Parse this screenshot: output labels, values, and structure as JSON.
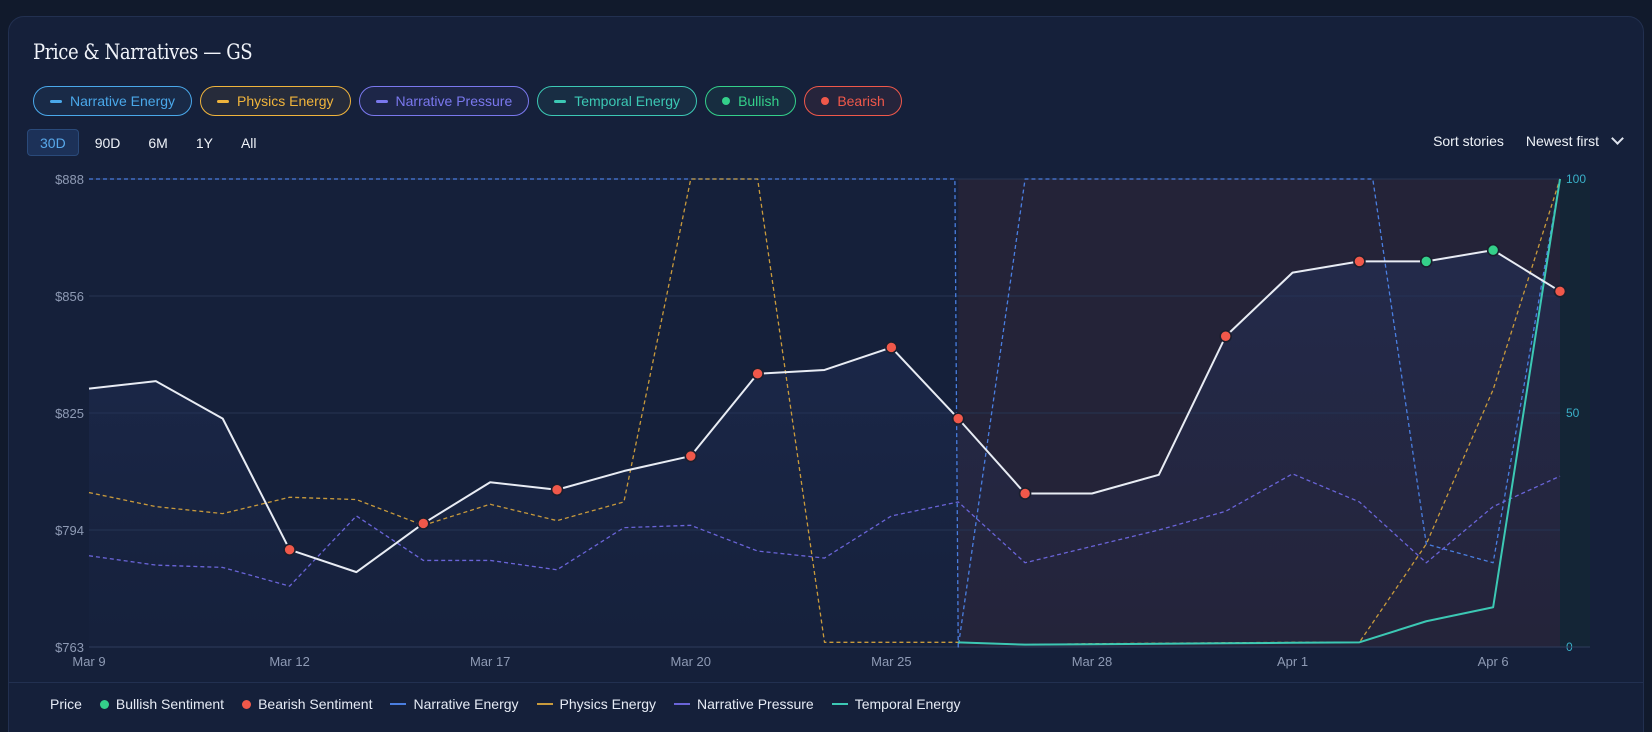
{
  "title": "Price & Narratives — GS",
  "pills": [
    {
      "label": "Narrative Energy",
      "color": "#4aa8ea",
      "kind": "dash"
    },
    {
      "label": "Physics Energy",
      "color": "#f0b43c",
      "kind": "dash"
    },
    {
      "label": "Narrative Pressure",
      "color": "#7a78ee",
      "kind": "dash"
    },
    {
      "label": "Temporal Energy",
      "color": "#3cc8b4",
      "kind": "dash"
    },
    {
      "label": "Bullish",
      "color": "#34d08a",
      "kind": "dot"
    },
    {
      "label": "Bearish",
      "color": "#f0584a",
      "kind": "dot"
    }
  ],
  "ranges": [
    "30D",
    "90D",
    "6M",
    "1Y",
    "All"
  ],
  "active_range": "30D",
  "sort": {
    "label": "Sort stories",
    "value": "Newest first"
  },
  "bottom_legend": [
    {
      "label": "Price",
      "kind": "none",
      "color": "#e6ebf5"
    },
    {
      "label": "Bullish Sentiment",
      "kind": "dot",
      "color": "#34d08a"
    },
    {
      "label": "Bearish Sentiment",
      "kind": "dot",
      "color": "#f0584a"
    },
    {
      "label": "Narrative Energy",
      "kind": "line",
      "color": "#4a7ee0"
    },
    {
      "label": "Physics Energy",
      "kind": "line",
      "color": "#c89a3c"
    },
    {
      "label": "Narrative Pressure",
      "kind": "line",
      "color": "#6a64d8"
    },
    {
      "label": "Temporal Energy",
      "kind": "line",
      "color": "#3cc8b4"
    }
  ],
  "chart_data": {
    "type": "line",
    "x_start": "Mar 9",
    "x_ticks": [
      {
        "label": "Mar 9",
        "index": 0
      },
      {
        "label": "Mar 12",
        "index": 3
      },
      {
        "label": "Mar 17",
        "index": 6
      },
      {
        "label": "Mar 20",
        "index": 9
      },
      {
        "label": "Mar 25",
        "index": 12
      },
      {
        "label": "Mar 28",
        "index": 15
      },
      {
        "label": "Apr 1",
        "index": 18
      },
      {
        "label": "Apr 6",
        "index": 21
      }
    ],
    "y_left": {
      "ticks": [
        "$888",
        "$856",
        "$825",
        "$794",
        "$763"
      ],
      "range": [
        763,
        888
      ]
    },
    "y_right": {
      "ticks": [
        "100",
        "50",
        "0"
      ],
      "range": [
        0,
        100
      ]
    },
    "highlight_region": {
      "from_index": 13,
      "to_index": 22
    },
    "price": [
      832,
      834,
      824,
      789,
      783,
      796,
      807,
      805,
      810,
      814,
      836,
      837,
      843,
      824,
      804,
      804,
      809,
      846,
      863,
      866,
      866,
      869,
      858
    ],
    "sentiment_markers": [
      {
        "index": 3,
        "sentiment": "bearish"
      },
      {
        "index": 5,
        "sentiment": "bearish"
      },
      {
        "index": 7,
        "sentiment": "bearish"
      },
      {
        "index": 9,
        "sentiment": "bearish"
      },
      {
        "index": 10,
        "sentiment": "bearish"
      },
      {
        "index": 12,
        "sentiment": "bearish"
      },
      {
        "index": 13,
        "sentiment": "bearish"
      },
      {
        "index": 14,
        "sentiment": "bearish"
      },
      {
        "index": 17,
        "sentiment": "bearish"
      },
      {
        "index": 19,
        "sentiment": "bearish"
      },
      {
        "index": 20,
        "sentiment": "bullish"
      },
      {
        "index": 21,
        "sentiment": "bullish"
      },
      {
        "index": 22,
        "sentiment": "bearish"
      }
    ],
    "series": [
      {
        "name": "Narrative Energy",
        "color": "#4a7ee0",
        "dashed": true,
        "axis": "right",
        "points": [
          [
            0,
            100
          ],
          [
            12.95,
            100
          ],
          [
            13,
            0
          ],
          [
            14,
            100
          ],
          [
            19,
            100
          ],
          [
            19.2,
            100
          ],
          [
            20,
            22
          ],
          [
            21,
            18
          ],
          [
            22,
            100
          ]
        ]
      },
      {
        "name": "Physics Energy",
        "color": "#c89a3c",
        "dashed": true,
        "axis": "right",
        "points": [
          [
            0,
            33
          ],
          [
            1,
            30
          ],
          [
            2,
            28.5
          ],
          [
            3,
            32
          ],
          [
            4,
            31.5
          ],
          [
            5,
            26
          ],
          [
            6,
            30.5
          ],
          [
            7,
            27
          ],
          [
            8,
            31
          ],
          [
            9,
            100
          ],
          [
            10,
            100
          ],
          [
            11,
            1
          ],
          [
            12,
            1
          ],
          [
            13,
            1
          ],
          [
            14,
            0.5
          ],
          [
            15,
            0.7
          ],
          [
            16,
            0.8
          ],
          [
            17,
            0.9
          ],
          [
            18,
            1
          ],
          [
            19,
            1
          ],
          [
            20,
            22
          ],
          [
            21,
            55
          ],
          [
            22,
            100
          ]
        ]
      },
      {
        "name": "Narrative Pressure",
        "color": "#6a64d8",
        "dashed": true,
        "axis": "right",
        "points": [
          [
            0,
            19.5
          ],
          [
            1,
            17.5
          ],
          [
            2,
            17
          ],
          [
            3,
            13
          ],
          [
            4,
            28
          ],
          [
            5,
            18.5
          ],
          [
            6,
            18.5
          ],
          [
            7,
            16.5
          ],
          [
            8,
            25.5
          ],
          [
            9,
            26
          ],
          [
            10,
            20.5
          ],
          [
            11,
            19
          ],
          [
            12,
            28
          ],
          [
            13,
            31
          ],
          [
            14,
            18
          ],
          [
            15,
            21.5
          ],
          [
            16,
            25
          ],
          [
            17,
            29
          ],
          [
            18,
            37
          ],
          [
            19,
            31
          ],
          [
            20,
            18
          ],
          [
            21,
            30
          ],
          [
            22,
            36.5
          ]
        ]
      },
      {
        "name": "Temporal Energy",
        "color": "#3cc8b4",
        "dashed": false,
        "axis": "right",
        "points": [
          [
            13,
            1
          ],
          [
            14,
            0.5
          ],
          [
            15,
            0.6
          ],
          [
            16,
            0.7
          ],
          [
            17,
            0.8
          ],
          [
            18,
            0.9
          ],
          [
            19,
            1
          ],
          [
            20,
            5.5
          ],
          [
            21,
            8.5
          ],
          [
            22,
            100
          ]
        ]
      }
    ]
  }
}
